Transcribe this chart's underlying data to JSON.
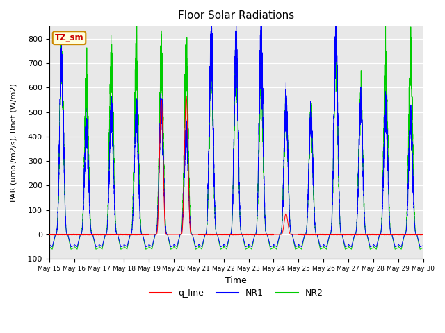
{
  "title": "Floor Solar Radiations",
  "xlabel": "Time",
  "ylabel": "PAR (umol/m2/s), Rnet (W/m2)",
  "ylim": [
    -100,
    850
  ],
  "legend_labels": [
    "q_line",
    "NR1",
    "NR2"
  ],
  "legend_colors": [
    "#ff0000",
    "#0000ff",
    "#00cc00"
  ],
  "annotation_text": "TZ_sm",
  "annotation_bgcolor": "#ffffdd",
  "annotation_edgecolor": "#cc8800",
  "annotation_textcolor": "#cc0000",
  "bg_color": "#e8e8e8",
  "n_days": 15,
  "start_day": 15,
  "points_per_day": 480,
  "nr1_peaks": [
    700,
    440,
    490,
    490,
    530,
    420,
    780,
    780,
    780,
    530,
    480,
    800,
    530,
    530,
    460
  ],
  "nr2_peaks": [
    695,
    600,
    720,
    720,
    710,
    695,
    710,
    720,
    670,
    530,
    480,
    700,
    560,
    700,
    725
  ],
  "ql_peaks": [
    0,
    0,
    0,
    0,
    550,
    565,
    0,
    0,
    0,
    85,
    0,
    0,
    0,
    0,
    0
  ],
  "nr1_trough": -50,
  "nr2_trough": -60
}
